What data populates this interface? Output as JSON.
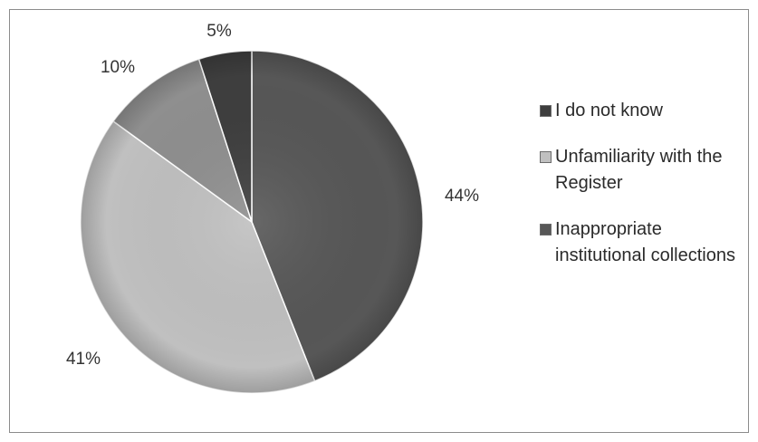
{
  "chart_data": {
    "type": "pie",
    "slices": [
      {
        "label": "I do not know",
        "value": 44,
        "value_label": "44%",
        "color": "#575757"
      },
      {
        "label": "Unfamiliarity with the Register",
        "value": 41,
        "value_label": "41%",
        "color": "#c0c0c0"
      },
      {
        "label": "Inappropriate institutional collections",
        "value": 10,
        "value_label": "10%",
        "color": "#8f8f8f"
      },
      {
        "label": "",
        "value": 5,
        "value_label": "5%",
        "color": "#3e3e3e"
      }
    ],
    "legend_position": "right",
    "legend": [
      {
        "text": "I do not know",
        "color": "#3e3e3e"
      },
      {
        "text": "Unfamiliarity with the Register",
        "color": "#c0c0c0"
      },
      {
        "text": "Inappropriate institutional collections",
        "color": "#575757"
      }
    ]
  }
}
